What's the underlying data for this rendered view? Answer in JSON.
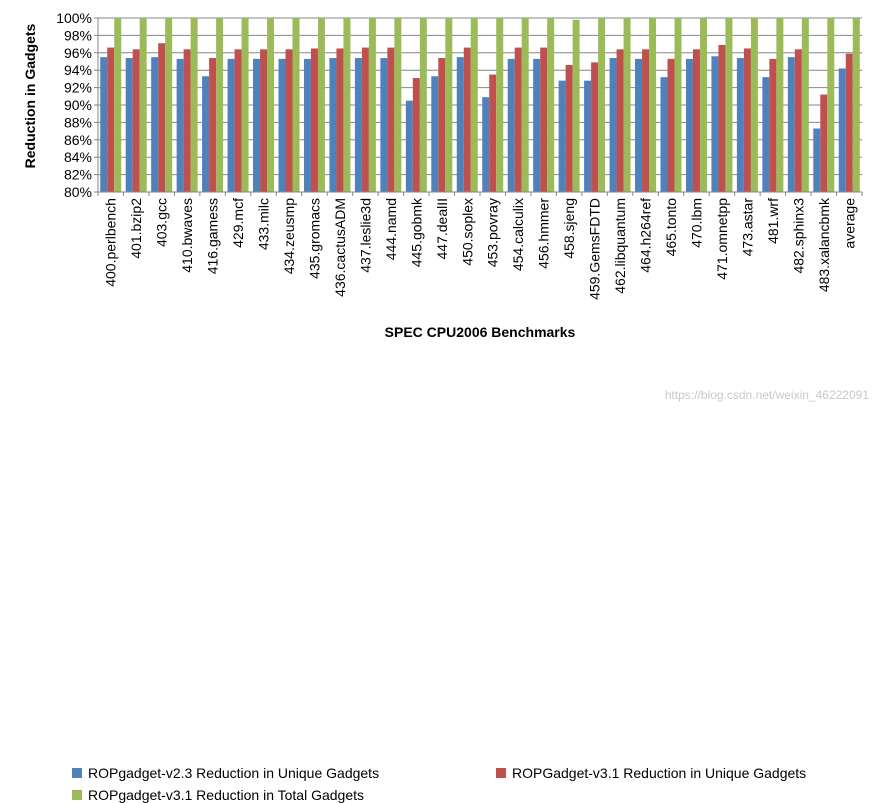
{
  "chart_data": {
    "type": "bar",
    "xlabel": "SPEC CPU2006 Benchmarks",
    "ylabel": "Reduction in Gadgets",
    "ylim": [
      80,
      100
    ],
    "yticks": [
      "80%",
      "82%",
      "84%",
      "86%",
      "88%",
      "90%",
      "92%",
      "94%",
      "96%",
      "98%",
      "100%"
    ],
    "grid": true,
    "legend_position": "bottom",
    "categories": [
      "400.perlbench",
      "401.bzip2",
      "403.gcc",
      "410.bwaves",
      "416.gamess",
      "429.mcf",
      "433.milc",
      "434.zeusmp",
      "435.gromacs",
      "436.cactusADM",
      "437.leslie3d",
      "444.namd",
      "445.gobmk",
      "447.dealII",
      "450.soplex",
      "453.povray",
      "454.calculix",
      "456.hmmer",
      "458.sjeng",
      "459.GemsFDTD",
      "462.libquantum",
      "464.h264ref",
      "465.tonto",
      "470.lbm",
      "471.omnetpp",
      "473.astar",
      "481.wrf",
      "482.sphinx3",
      "483.xalancbmk",
      "average"
    ],
    "series": [
      {
        "name": "ROPgadget-v2.3 Reduction in Unique Gadgets",
        "color": "#4f81bd",
        "values": [
          95.5,
          95.4,
          95.5,
          95.3,
          93.3,
          95.3,
          95.3,
          95.3,
          95.3,
          95.4,
          95.4,
          95.4,
          90.5,
          93.3,
          95.5,
          90.9,
          95.3,
          95.3,
          92.8,
          92.8,
          95.4,
          95.3,
          93.2,
          95.3,
          95.6,
          95.4,
          93.2,
          95.5,
          87.3,
          94.2
        ]
      },
      {
        "name": "ROPGadget-v3.1 Reduction in Unique Gadgets",
        "color": "#c0504d",
        "values": [
          96.6,
          96.4,
          97.1,
          96.4,
          95.4,
          96.4,
          96.4,
          96.4,
          96.5,
          96.5,
          96.6,
          96.6,
          93.1,
          95.4,
          96.6,
          93.5,
          96.6,
          96.6,
          94.6,
          94.9,
          96.4,
          96.4,
          95.3,
          96.4,
          96.9,
          96.5,
          95.3,
          96.4,
          91.2,
          95.9
        ]
      },
      {
        "name": "ROPgadget-v3.1 Reduction in Total Gadgets",
        "color": "#9bbb59",
        "values": [
          100,
          100,
          100,
          100,
          100,
          100,
          100,
          100,
          100,
          100,
          100,
          100,
          100,
          100,
          100,
          100,
          100,
          100,
          99.8,
          100,
          100,
          100,
          100,
          100,
          100,
          100,
          100,
          100,
          100,
          100
        ]
      }
    ]
  },
  "watermark": "https://blog.csdn.net/weixin_46222091"
}
